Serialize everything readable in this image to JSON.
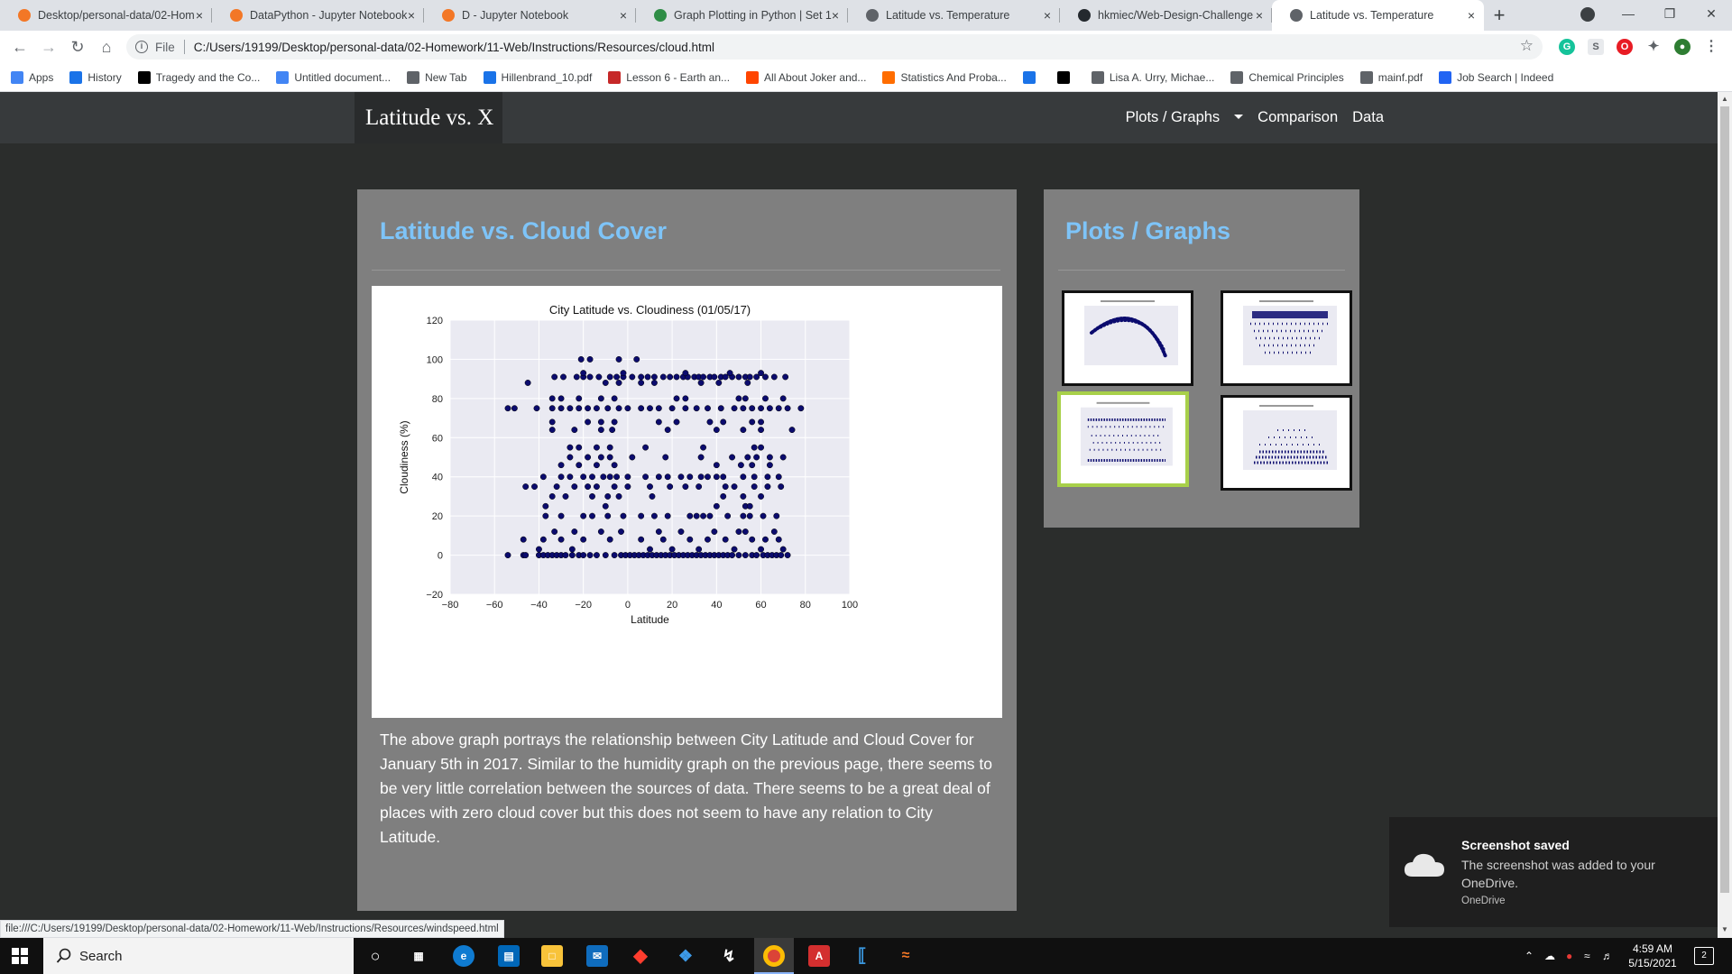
{
  "browser": {
    "tabs": [
      {
        "title": "Desktop/personal-data/02-Hom",
        "icon": "jupyter-icon",
        "color": "#f37726"
      },
      {
        "title": "DataPython - Jupyter Notebook",
        "icon": "notebook-icon",
        "color": "#f37726"
      },
      {
        "title": "D - Jupyter Notebook",
        "icon": "notebook-icon",
        "color": "#f37726"
      },
      {
        "title": "Graph Plotting in Python | Set 1",
        "icon": "gfg-icon",
        "color": "#2f8d46"
      },
      {
        "title": "Latitude vs. Temperature",
        "icon": "globe-icon",
        "color": "#5f6368"
      },
      {
        "title": "hkmiec/Web-Design-Challenge",
        "icon": "github-icon",
        "color": "#24292e"
      },
      {
        "title": "Latitude vs. Temperature",
        "icon": "globe-icon",
        "color": "#5f6368"
      }
    ],
    "url_scheme": "File",
    "url": "C:/Users/19199/Desktop/personal-data/02-Homework/11-Web/Instructions/Resources/cloud.html",
    "bookmarks": [
      {
        "label": "Apps",
        "icon": "apps-grid-icon",
        "color": "#4285f4"
      },
      {
        "label": "History",
        "icon": "history-icon",
        "color": "#1a73e8"
      },
      {
        "label": "Tragedy and the Co...",
        "icon": "nyt-icon",
        "color": "#000000"
      },
      {
        "label": "Untitled document...",
        "icon": "docs-icon",
        "color": "#4285f4"
      },
      {
        "label": "New Tab",
        "icon": "globe-icon",
        "color": "#5f6368"
      },
      {
        "label": "Hillenbrand_10.pdf",
        "icon": "pdf-bank-icon",
        "color": "#1a73e8"
      },
      {
        "label": "Lesson 6 - Earth an...",
        "icon": "wa-icon",
        "color": "#c62828"
      },
      {
        "label": "All About Joker and...",
        "icon": "reddit-icon",
        "color": "#ff4500"
      },
      {
        "label": "Statistics And Proba...",
        "icon": "coursera-icon",
        "color": "#ff6d00"
      },
      {
        "label": "",
        "icon": "bank-icon",
        "color": "#1a73e8"
      },
      {
        "label": "",
        "icon": "wikipedia-icon",
        "color": "#000000"
      },
      {
        "label": "Lisa A. Urry, Michae...",
        "icon": "globe-icon",
        "color": "#5f6368"
      },
      {
        "label": "Chemical Principles",
        "icon": "globe-icon",
        "color": "#5f6368"
      },
      {
        "label": "mainf.pdf",
        "icon": "globe-icon",
        "color": "#5f6368"
      },
      {
        "label": "Job Search | Indeed",
        "icon": "indeed-icon",
        "color": "#2164f3"
      }
    ],
    "status_url": "file:///C:/Users/19199/Desktop/personal-data/02-Homework/11-Web/Instructions/Resources/windspeed.html"
  },
  "site": {
    "brand": "Latitude vs. X",
    "nav": {
      "plots": "Plots / Graphs",
      "comparison": "Comparison",
      "data": "Data"
    },
    "main_title": "Latitude vs. Cloud Cover",
    "description": "The above graph portrays the relationship between City Latitude and Cloud Cover for January 5th in 2017. Similar to the humidity graph on the previous page, there seems to be very little correlation between the sources of data. There seems to be a great deal of places with zero cloud cover but this does not seem to have any relation to City Latitude.",
    "side_title": "Plots / Graphs",
    "thumbnails": [
      {
        "name": "thumb-temperature",
        "selected": false
      },
      {
        "name": "thumb-humidity",
        "selected": false
      },
      {
        "name": "thumb-cloudiness",
        "selected": true
      },
      {
        "name": "thumb-windspeed",
        "selected": false
      }
    ]
  },
  "chart_data": {
    "type": "scatter",
    "title": "City Latitude vs. Cloudiness (01/05/17)",
    "xlabel": "Latitude",
    "ylabel": "Cloudiness (%)",
    "xlim": [
      -80,
      100
    ],
    "ylim": [
      -20,
      120
    ],
    "xticks": [
      "−80",
      "−60",
      "−40",
      "−20",
      "0",
      "20",
      "40",
      "60",
      "80",
      "100"
    ],
    "yticks": [
      "−20",
      "0",
      "20",
      "40",
      "60",
      "80",
      "100",
      "120"
    ],
    "grid": true,
    "background": "#eaeaf2",
    "marker_color": "#0b0b6e",
    "points": [
      [
        -54,
        0
      ],
      [
        -47,
        0
      ],
      [
        -46,
        0
      ],
      [
        -40,
        0
      ],
      [
        -38,
        0
      ],
      [
        -36,
        0
      ],
      [
        -34,
        0
      ],
      [
        -32,
        0
      ],
      [
        -30,
        0
      ],
      [
        -28,
        0
      ],
      [
        -25,
        0
      ],
      [
        -22,
        0
      ],
      [
        -20,
        0
      ],
      [
        -17,
        0
      ],
      [
        -14,
        0
      ],
      [
        -10,
        0
      ],
      [
        -6,
        0
      ],
      [
        -3,
        0
      ],
      [
        -1,
        0
      ],
      [
        1,
        0
      ],
      [
        3,
        0
      ],
      [
        5,
        0
      ],
      [
        7,
        0
      ],
      [
        9,
        0
      ],
      [
        11,
        0
      ],
      [
        13,
        0
      ],
      [
        15,
        0
      ],
      [
        17,
        0
      ],
      [
        19,
        0
      ],
      [
        21,
        0
      ],
      [
        23,
        0
      ],
      [
        25,
        0
      ],
      [
        27,
        0
      ],
      [
        29,
        0
      ],
      [
        31,
        0
      ],
      [
        33,
        0
      ],
      [
        35,
        0
      ],
      [
        37,
        0
      ],
      [
        39,
        0
      ],
      [
        41,
        0
      ],
      [
        43,
        0
      ],
      [
        45,
        0
      ],
      [
        47,
        0
      ],
      [
        50,
        0
      ],
      [
        53,
        0
      ],
      [
        56,
        0
      ],
      [
        58,
        0
      ],
      [
        61,
        0
      ],
      [
        63,
        0
      ],
      [
        65,
        0
      ],
      [
        67,
        0
      ],
      [
        69,
        0
      ],
      [
        72,
        0
      ],
      [
        -47,
        8
      ],
      [
        -38,
        8
      ],
      [
        -30,
        8
      ],
      [
        -20,
        8
      ],
      [
        -8,
        8
      ],
      [
        6,
        8
      ],
      [
        16,
        8
      ],
      [
        28,
        8
      ],
      [
        36,
        8
      ],
      [
        44,
        8
      ],
      [
        56,
        8
      ],
      [
        62,
        8
      ],
      [
        68,
        8
      ],
      [
        -40,
        3
      ],
      [
        -25,
        3
      ],
      [
        10,
        3
      ],
      [
        20,
        3
      ],
      [
        32,
        3
      ],
      [
        48,
        3
      ],
      [
        60,
        3
      ],
      [
        70,
        3
      ],
      [
        -33,
        12
      ],
      [
        -24,
        12
      ],
      [
        -12,
        12
      ],
      [
        -3,
        12
      ],
      [
        14,
        12
      ],
      [
        24,
        12
      ],
      [
        39,
        12
      ],
      [
        50,
        12
      ],
      [
        53,
        12
      ],
      [
        66,
        12
      ],
      [
        -37,
        20
      ],
      [
        -30,
        20
      ],
      [
        -20,
        20
      ],
      [
        -16,
        20
      ],
      [
        -9,
        20
      ],
      [
        -2,
        20
      ],
      [
        6,
        20
      ],
      [
        12,
        20
      ],
      [
        18,
        20
      ],
      [
        28,
        20
      ],
      [
        31,
        20
      ],
      [
        34,
        20
      ],
      [
        37,
        20
      ],
      [
        45,
        20
      ],
      [
        52,
        20
      ],
      [
        55,
        20
      ],
      [
        61,
        20
      ],
      [
        67,
        20
      ],
      [
        -37,
        25
      ],
      [
        -10,
        25
      ],
      [
        40,
        25
      ],
      [
        53,
        25
      ],
      [
        55,
        25
      ],
      [
        -46,
        35
      ],
      [
        -42,
        35
      ],
      [
        -32,
        35
      ],
      [
        -24,
        35
      ],
      [
        -18,
        35
      ],
      [
        -14,
        35
      ],
      [
        -6,
        35
      ],
      [
        0,
        35
      ],
      [
        10,
        35
      ],
      [
        19,
        35
      ],
      [
        26,
        35
      ],
      [
        32,
        35
      ],
      [
        44,
        35
      ],
      [
        48,
        35
      ],
      [
        57,
        35
      ],
      [
        63,
        35
      ],
      [
        69,
        35
      ],
      [
        -34,
        30
      ],
      [
        -28,
        30
      ],
      [
        -16,
        30
      ],
      [
        -9,
        30
      ],
      [
        -4,
        30
      ],
      [
        11,
        30
      ],
      [
        43,
        30
      ],
      [
        52,
        30
      ],
      [
        60,
        30
      ],
      [
        -38,
        40
      ],
      [
        -30,
        40
      ],
      [
        -26,
        40
      ],
      [
        -20,
        40
      ],
      [
        -16,
        40
      ],
      [
        -11,
        40
      ],
      [
        -8,
        40
      ],
      [
        -5,
        40
      ],
      [
        0,
        40
      ],
      [
        8,
        40
      ],
      [
        14,
        40
      ],
      [
        18,
        40
      ],
      [
        24,
        40
      ],
      [
        28,
        40
      ],
      [
        33,
        40
      ],
      [
        36,
        40
      ],
      [
        40,
        40
      ],
      [
        43,
        40
      ],
      [
        52,
        40
      ],
      [
        57,
        40
      ],
      [
        63,
        40
      ],
      [
        68,
        40
      ],
      [
        -30,
        46
      ],
      [
        -22,
        46
      ],
      [
        -14,
        46
      ],
      [
        -6,
        46
      ],
      [
        40,
        46
      ],
      [
        51,
        46
      ],
      [
        56,
        46
      ],
      [
        64,
        46
      ],
      [
        -26,
        50
      ],
      [
        -18,
        50
      ],
      [
        -12,
        50
      ],
      [
        -8,
        50
      ],
      [
        2,
        50
      ],
      [
        17,
        50
      ],
      [
        33,
        50
      ],
      [
        47,
        50
      ],
      [
        54,
        50
      ],
      [
        58,
        50
      ],
      [
        64,
        50
      ],
      [
        70,
        50
      ],
      [
        -26,
        55
      ],
      [
        -22,
        55
      ],
      [
        -14,
        55
      ],
      [
        -8,
        55
      ],
      [
        8,
        55
      ],
      [
        34,
        55
      ],
      [
        57,
        55
      ],
      [
        60,
        55
      ],
      [
        -34,
        64
      ],
      [
        -24,
        64
      ],
      [
        -12,
        64
      ],
      [
        -7,
        64
      ],
      [
        18,
        64
      ],
      [
        40,
        64
      ],
      [
        52,
        64
      ],
      [
        60,
        64
      ],
      [
        74,
        64
      ],
      [
        -34,
        68
      ],
      [
        -18,
        68
      ],
      [
        -12,
        68
      ],
      [
        -6,
        68
      ],
      [
        14,
        68
      ],
      [
        22,
        68
      ],
      [
        37,
        68
      ],
      [
        43,
        68
      ],
      [
        56,
        68
      ],
      [
        60,
        68
      ],
      [
        -54,
        75
      ],
      [
        -51,
        75
      ],
      [
        -41,
        75
      ],
      [
        -34,
        75
      ],
      [
        -30,
        75
      ],
      [
        -26,
        75
      ],
      [
        -22,
        75
      ],
      [
        -18,
        75
      ],
      [
        -14,
        75
      ],
      [
        -9,
        75
      ],
      [
        -4,
        75
      ],
      [
        0,
        75
      ],
      [
        6,
        75
      ],
      [
        10,
        75
      ],
      [
        14,
        75
      ],
      [
        20,
        75
      ],
      [
        26,
        75
      ],
      [
        31,
        75
      ],
      [
        36,
        75
      ],
      [
        42,
        75
      ],
      [
        48,
        75
      ],
      [
        52,
        75
      ],
      [
        56,
        75
      ],
      [
        60,
        75
      ],
      [
        64,
        75
      ],
      [
        68,
        75
      ],
      [
        72,
        75
      ],
      [
        78,
        75
      ],
      [
        -34,
        80
      ],
      [
        -30,
        80
      ],
      [
        -22,
        80
      ],
      [
        -12,
        80
      ],
      [
        -6,
        80
      ],
      [
        22,
        80
      ],
      [
        26,
        80
      ],
      [
        50,
        80
      ],
      [
        53,
        80
      ],
      [
        62,
        80
      ],
      [
        70,
        80
      ],
      [
        -45,
        88
      ],
      [
        -10,
        88
      ],
      [
        -4,
        88
      ],
      [
        6,
        88
      ],
      [
        12,
        88
      ],
      [
        33,
        88
      ],
      [
        41,
        88
      ],
      [
        54,
        88
      ],
      [
        -33,
        91
      ],
      [
        -29,
        91
      ],
      [
        -23,
        91
      ],
      [
        -20,
        91
      ],
      [
        -17,
        91
      ],
      [
        -13,
        91
      ],
      [
        -8,
        91
      ],
      [
        -5,
        91
      ],
      [
        -2,
        91
      ],
      [
        2,
        91
      ],
      [
        6,
        91
      ],
      [
        9,
        91
      ],
      [
        12,
        91
      ],
      [
        16,
        91
      ],
      [
        19,
        91
      ],
      [
        22,
        91
      ],
      [
        25,
        91
      ],
      [
        27,
        91
      ],
      [
        30,
        91
      ],
      [
        32,
        91
      ],
      [
        34,
        91
      ],
      [
        37,
        91
      ],
      [
        39,
        91
      ],
      [
        42,
        91
      ],
      [
        44,
        91
      ],
      [
        47,
        91
      ],
      [
        50,
        91
      ],
      [
        53,
        91
      ],
      [
        55,
        91
      ],
      [
        58,
        91
      ],
      [
        62,
        91
      ],
      [
        66,
        91
      ],
      [
        71,
        91
      ],
      [
        -20,
        93
      ],
      [
        -2,
        93
      ],
      [
        26,
        93
      ],
      [
        46,
        93
      ],
      [
        60,
        93
      ],
      [
        -21,
        100
      ],
      [
        -17,
        100
      ],
      [
        -4,
        100
      ],
      [
        4,
        100
      ]
    ]
  },
  "toast": {
    "title": "Screenshot saved",
    "body": "The screenshot was added to your OneDrive.",
    "source": "OneDrive"
  },
  "taskbar": {
    "search_placeholder": "Search",
    "time": "4:59 AM",
    "date": "5/15/2021",
    "notification_count": "2"
  }
}
